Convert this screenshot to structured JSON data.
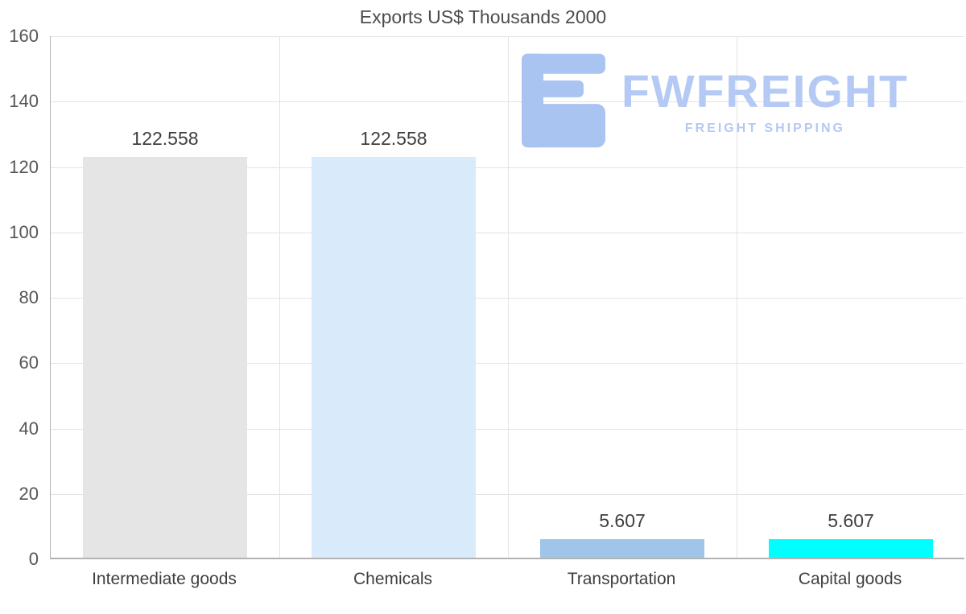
{
  "chart_data": {
    "type": "bar",
    "title": "Exports US$ Thousands 2000",
    "categories": [
      "Intermediate goods",
      "Chemicals",
      "Transportation",
      "Capital goods"
    ],
    "values": [
      122.558,
      122.558,
      5.607,
      5.607
    ],
    "value_labels": [
      "122.558",
      "122.558",
      "5.607",
      "5.607"
    ],
    "bar_colors": [
      "#e5e5e5",
      "#d9eafa",
      "#9fc6e8",
      "#00ffff"
    ],
    "xlabel": "",
    "ylabel": "",
    "ylim": [
      0,
      160
    ],
    "yticks": [
      0,
      20,
      40,
      60,
      80,
      100,
      120,
      140,
      160
    ],
    "grid": true,
    "legend": "none"
  },
  "watermark": {
    "brand": "FWFREIGHT",
    "tagline": "FREIGHT SHIPPING",
    "color": "#b4c9f3",
    "logo_color": "#a9c4f1"
  }
}
